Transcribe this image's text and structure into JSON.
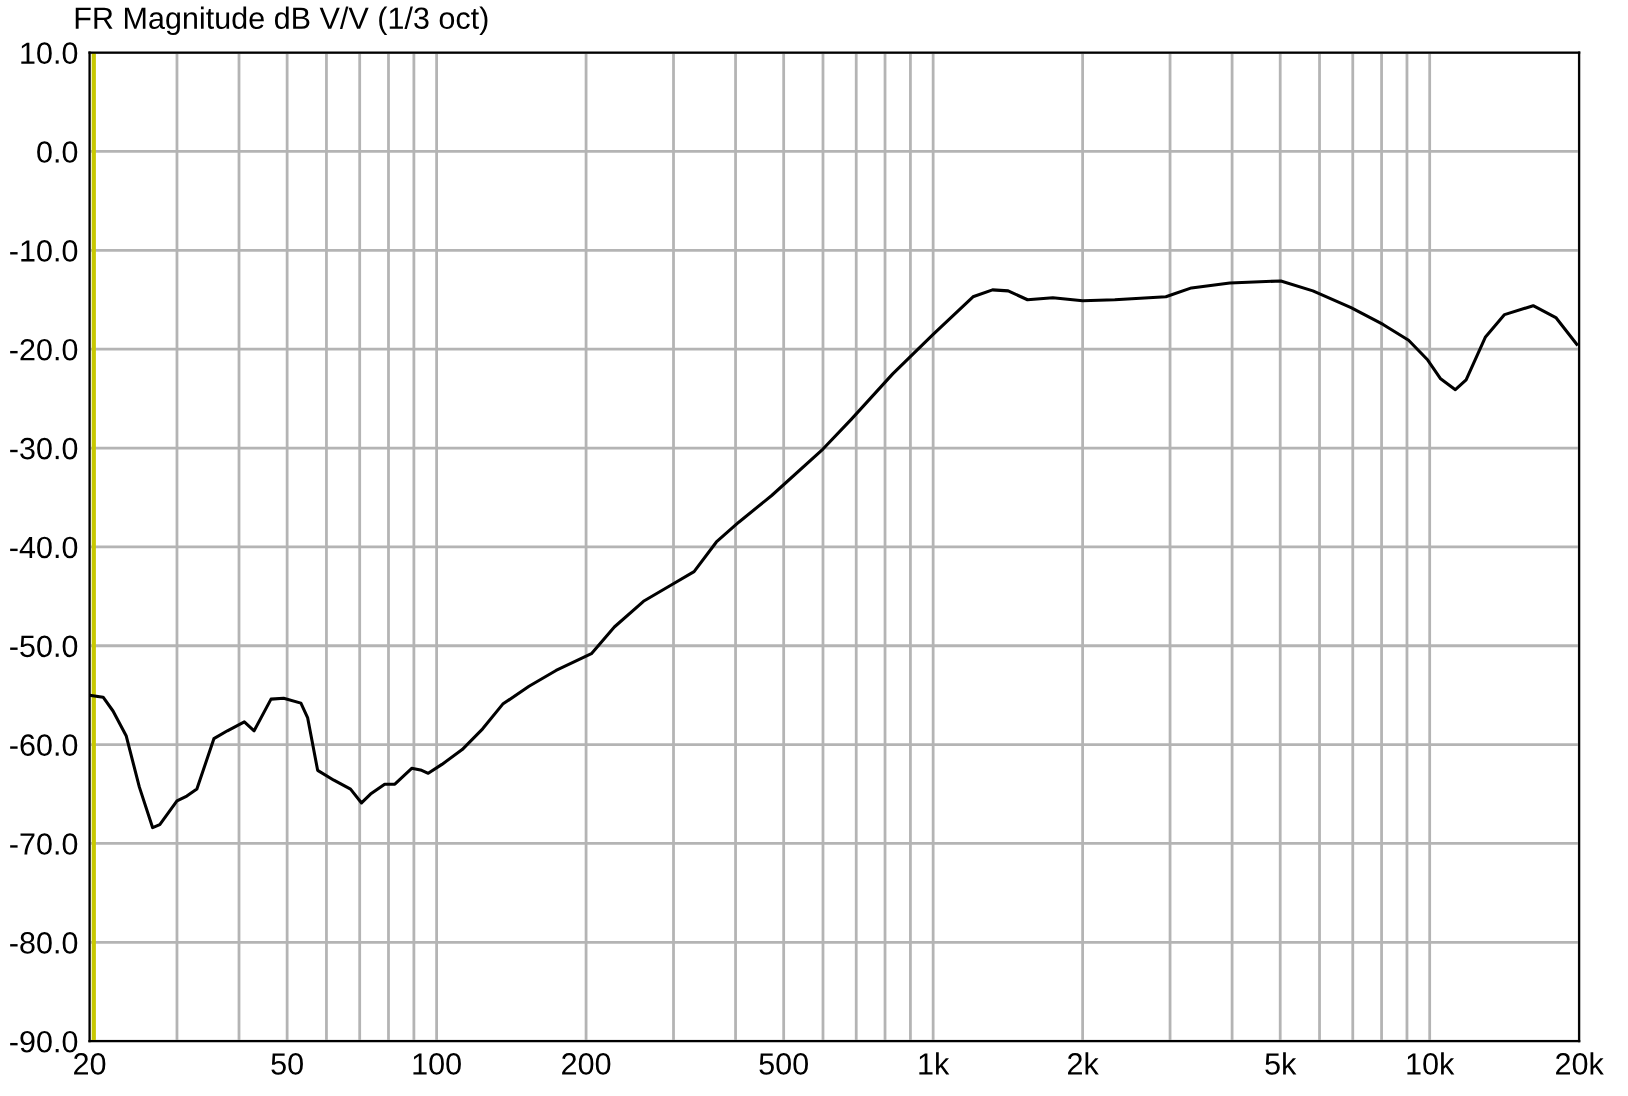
{
  "chart_data": {
    "type": "line",
    "title": "FR Magnitude dB V/V (1/3 oct)",
    "log": "x",
    "grid": true,
    "marker": "none",
    "line_style": "solid",
    "xlim": [
      20,
      20000
    ],
    "ylim": [
      -90,
      10
    ],
    "xticks": [
      20,
      {
        "value": 30,
        "label": null
      },
      {
        "value": 40,
        "label": null
      },
      50,
      {
        "value": 60,
        "label": null
      },
      {
        "value": 70,
        "label": null
      },
      {
        "value": 80,
        "label": null
      },
      {
        "value": 90,
        "label": null
      },
      100,
      200,
      {
        "value": 300,
        "label": null
      },
      {
        "value": 400,
        "label": null
      },
      500,
      {
        "value": 600,
        "label": null
      },
      {
        "value": 700,
        "label": null
      },
      {
        "value": 800,
        "label": null
      },
      {
        "value": 900,
        "label": null
      },
      {
        "value": 1000,
        "label": "1k"
      },
      {
        "value": 2000,
        "label": "2k"
      },
      {
        "value": 3000,
        "label": null
      },
      {
        "value": 4000,
        "label": null
      },
      {
        "value": 5000,
        "label": "5k"
      },
      {
        "value": 6000,
        "label": null
      },
      {
        "value": 7000,
        "label": null
      },
      {
        "value": 8000,
        "label": null
      },
      {
        "value": 9000,
        "label": null
      },
      {
        "value": 10000,
        "label": "10k"
      },
      {
        "value": 20000,
        "label": "20k"
      }
    ],
    "yticks": [
      {
        "value": 10,
        "label": "10.0"
      },
      {
        "value": 0,
        "label": "0.0"
      },
      {
        "value": -10,
        "label": "-10.0"
      },
      {
        "value": -20,
        "label": "-20.0"
      },
      {
        "value": -30,
        "label": "-30.0"
      },
      {
        "value": -40,
        "label": "-40.0"
      },
      {
        "value": -50,
        "label": "-50.0"
      },
      {
        "value": -60,
        "label": "-60.0"
      },
      {
        "value": -70,
        "label": "-70.0"
      },
      {
        "value": -80,
        "label": "-80.0"
      },
      {
        "value": -90,
        "label": "-90.0"
      }
    ],
    "ref_lines": [
      {
        "axis": "x",
        "value": 20.4,
        "color": "#c8c800"
      }
    ],
    "series": [
      {
        "color": "#000000",
        "x": [
          20,
          21.3,
          22.3,
          23.7,
          25.2,
          26.8,
          27.7,
          30,
          31.4,
          32.9,
          35.6,
          37.9,
          41,
          42.9,
          46.4,
          49.2,
          53.3,
          55,
          57.6,
          62.1,
          67.1,
          70.6,
          73.6,
          78.6,
          82.4,
          89.1,
          93.3,
          96.2,
          102.5,
          112.6,
          123.8,
          135.9,
          153.5,
          174,
          205,
          228,
          261,
          298,
          330,
          366,
          406,
          473,
          600,
          684,
          829,
          1000,
          1203,
          1317,
          1416,
          1549,
          1742,
          2000,
          2322,
          2942,
          3313,
          3958,
          5015,
          5818,
          6944,
          8055,
          9069,
          9911,
          10520,
          11265,
          11840,
          12940,
          14150,
          16160,
          17950,
          19780
        ],
        "values": [
          -55.0,
          -55.2,
          -56.6,
          -59.1,
          -64.3,
          -68.4,
          -68.1,
          -65.7,
          -65.2,
          -64.5,
          -59.4,
          -58.6,
          -57.7,
          -58.6,
          -55.4,
          -55.3,
          -55.8,
          -57.3,
          -62.6,
          -63.6,
          -64.5,
          -65.9,
          -65.0,
          -64.0,
          -64.0,
          -62.4,
          -62.6,
          -62.9,
          -62.0,
          -60.5,
          -58.4,
          -55.9,
          -54.1,
          -52.5,
          -50.8,
          -48.1,
          -45.5,
          -43.8,
          -42.5,
          -39.5,
          -37.5,
          -34.8,
          -30.1,
          -27.1,
          -22.5,
          -18.5,
          -14.7,
          -14.0,
          -14.1,
          -15.0,
          -14.8,
          -15.1,
          -15.0,
          -14.7,
          -13.8,
          -13.3,
          -13.1,
          -14.1,
          -15.8,
          -17.5,
          -19.1,
          -21.1,
          -23.0,
          -24.1,
          -23.1,
          -18.8,
          -16.5,
          -15.6,
          -16.8,
          -19.5
        ]
      }
    ]
  }
}
